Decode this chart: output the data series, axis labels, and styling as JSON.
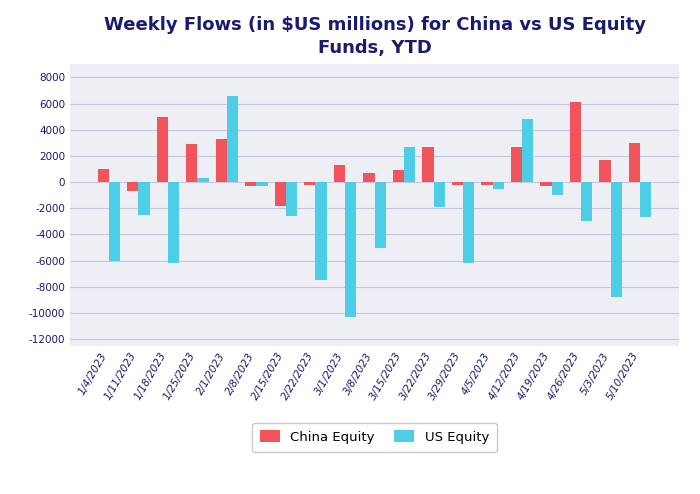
{
  "title": "Weekly Flows (in $US millions) for China vs US Equity\nFunds, YTD",
  "categories": [
    "1/4/2023",
    "1/11/2023",
    "1/18/2023",
    "1/25/2023",
    "2/1/2023",
    "2/8/2023",
    "2/15/2023",
    "2/22/2023",
    "3/1/2023",
    "3/8/2023",
    "3/15/2023",
    "3/22/2023",
    "3/29/2023",
    "4/5/2023",
    "4/12/2023",
    "4/19/2023",
    "4/26/2023",
    "5/3/2023",
    "5/10/2023"
  ],
  "china_equity": [
    1000,
    -700,
    5000,
    2900,
    3300,
    -300,
    -1800,
    -200,
    1300,
    700,
    900,
    2700,
    -200,
    -200,
    2700,
    -300,
    6100,
    1700,
    3000
  ],
  "us_equity": [
    -6000,
    -2500,
    -6200,
    300,
    6600,
    -300,
    -2600,
    -7500,
    -10300,
    -5000,
    2700,
    -1900,
    -6200,
    -500,
    4800,
    -1000,
    -3000,
    -8800,
    -2700
  ],
  "china_color": "#f2545b",
  "us_color": "#4ecde6",
  "background_color": "#eeeef5",
  "title_color": "#1a1a6e",
  "ylim": [
    -12500,
    9000
  ],
  "yticks": [
    -12000,
    -10000,
    -8000,
    -6000,
    -4000,
    -2000,
    0,
    2000,
    4000,
    6000,
    8000
  ],
  "legend_china": "China Equity",
  "legend_us": "US Equity",
  "bar_width": 0.38,
  "title_fontsize": 13,
  "tick_fontsize": 7.5,
  "legend_fontsize": 9.5,
  "grid_color": "#c8c8dc",
  "grid_linewidth": 0.8
}
